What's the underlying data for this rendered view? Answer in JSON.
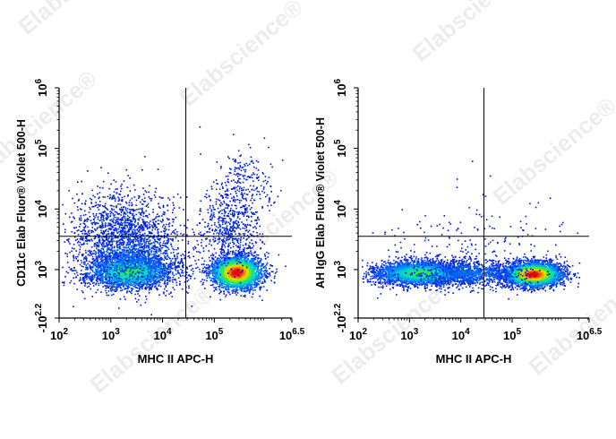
{
  "watermark": "Elabscience",
  "watermark_symbol": "®",
  "chart_data": [
    {
      "type": "scatter",
      "subtype": "flow-cytometry-density-dot-plot",
      "xlabel": "MHC II APC-H",
      "ylabel": "CD11c Elab Fluor® Violet 500-H",
      "x_axis": {
        "scale": "log",
        "range_exp": [
          2,
          6.5
        ],
        "ticks": [
          {
            "v": 2,
            "b": "10",
            "s": "2"
          },
          {
            "v": 3,
            "b": "10",
            "s": "3"
          },
          {
            "v": 4,
            "b": "10",
            "s": "4"
          },
          {
            "v": 5,
            "b": "10",
            "s": "5"
          },
          {
            "v": 6.5,
            "b": "10",
            "s": "6.5"
          }
        ]
      },
      "y_axis": {
        "scale": "log",
        "range_exp": [
          2.2,
          6
        ],
        "ticks": [
          {
            "v": 2.2,
            "b": "10",
            "s": "2.2",
            "neg": true
          },
          {
            "v": 3,
            "b": "10",
            "s": "3"
          },
          {
            "v": 4,
            "b": "10",
            "s": "4"
          },
          {
            "v": 5,
            "b": "10",
            "s": "5"
          },
          {
            "v": 6,
            "b": "10",
            "s": "6"
          }
        ]
      },
      "gates": {
        "x": 4.45,
        "y": 3.55
      },
      "populations": [
        {
          "x": 3.35,
          "y": 2.98,
          "sx": 0.42,
          "sy": 0.14,
          "n": 2600,
          "d": 0.55
        },
        {
          "x": 5.42,
          "y": 2.96,
          "sx": 0.25,
          "sy": 0.14,
          "n": 2800,
          "d": 1.0
        },
        {
          "x": 3.4,
          "y": 3.25,
          "sx": 0.55,
          "sy": 0.28,
          "n": 1300,
          "d": 0.18
        },
        {
          "x": 3.2,
          "y": 3.75,
          "sx": 0.5,
          "sy": 0.3,
          "n": 900,
          "d": 0.06
        },
        {
          "x": 5.3,
          "y": 3.7,
          "sx": 0.28,
          "sy": 0.35,
          "n": 600,
          "d": 0.06
        },
        {
          "x": 5.6,
          "y": 4.45,
          "sx": 0.25,
          "sy": 0.3,
          "n": 200,
          "d": 0.05
        }
      ]
    },
    {
      "type": "scatter",
      "subtype": "flow-cytometry-density-dot-plot",
      "xlabel": "MHC II APC-H",
      "ylabel": "AH IgG Elab Fluor® Violet 500-H",
      "x_axis": {
        "scale": "log",
        "range_exp": [
          2,
          6.5
        ],
        "ticks": [
          {
            "v": 2,
            "b": "10",
            "s": "2"
          },
          {
            "v": 3,
            "b": "10",
            "s": "3"
          },
          {
            "v": 4,
            "b": "10",
            "s": "4"
          },
          {
            "v": 5,
            "b": "10",
            "s": "5"
          },
          {
            "v": 6.5,
            "b": "10",
            "s": "6.5"
          }
        ]
      },
      "y_axis": {
        "scale": "log",
        "range_exp": [
          2.2,
          6
        ],
        "ticks": [
          {
            "v": 2.2,
            "b": "10",
            "s": "2.2",
            "neg": true
          },
          {
            "v": 3,
            "b": "10",
            "s": "3"
          },
          {
            "v": 4,
            "b": "10",
            "s": "4"
          },
          {
            "v": 5,
            "b": "10",
            "s": "5"
          },
          {
            "v": 6,
            "b": "10",
            "s": "6"
          }
        ]
      },
      "gates": {
        "x": 4.45,
        "y": 3.55
      },
      "populations": [
        {
          "x": 3.2,
          "y": 2.95,
          "sx": 0.45,
          "sy": 0.1,
          "n": 3000,
          "d": 0.55
        },
        {
          "x": 5.4,
          "y": 2.93,
          "sx": 0.28,
          "sy": 0.1,
          "n": 3300,
          "d": 1.0
        },
        {
          "x": 4.2,
          "y": 2.95,
          "sx": 0.5,
          "sy": 0.12,
          "n": 900,
          "d": 0.2
        },
        {
          "x": 4.3,
          "y": 3.5,
          "sx": 0.9,
          "sy": 0.35,
          "n": 180,
          "d": 0.03
        }
      ]
    }
  ]
}
